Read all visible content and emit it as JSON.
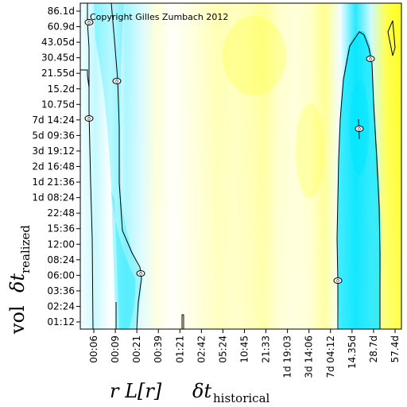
{
  "chart_data": {
    "type": "heatmap",
    "title": "",
    "annotation": "Copyright Gilles Zumbach 2012",
    "x_axis": {
      "label_prefix": "r L[r]",
      "label_symbol": "δt",
      "label_subscript": "historical",
      "tick_labels": [
        "00:06",
        "00:09",
        "00:21",
        "00:39",
        "01:21",
        "02:42",
        "05:24",
        "10:45",
        "21:33",
        "1d 19:03",
        "3d 14:06",
        "7d 04:12",
        "14.35d",
        "28.7d",
        "57.4d"
      ]
    },
    "y_axis": {
      "label_prefix": "vol",
      "label_symbol": "δt",
      "label_subscript": "realized",
      "tick_labels": [
        "01:12",
        "02:24",
        "03:36",
        "06:00",
        "08:24",
        "12:00",
        "15:36",
        "22:48",
        "1d 08:24",
        "1d 21:36",
        "2d 16:48",
        "3d 19:12",
        "5d 09:36",
        "7d 14:24",
        "10.75d",
        "15.2d",
        "21.55d",
        "30.45d",
        "43.05d",
        "60.9d",
        "86.1d"
      ]
    },
    "colormap": {
      "low": "#00e5ff",
      "mid": "#ffffff",
      "high": "#ffff00"
    },
    "contour_labels": [
      "0",
      "0",
      "0",
      "0",
      "0",
      "0",
      "0"
    ],
    "value_profile": [
      -0.05,
      -0.25,
      0.0,
      -0.35,
      -0.15,
      0.15,
      0.02,
      0.1,
      0.2,
      0.3,
      0.25,
      0.3,
      0.4,
      0.2,
      0.15,
      0.2,
      0.45,
      -0.05,
      -0.85,
      -0.2,
      0.7,
      0.9
    ]
  }
}
